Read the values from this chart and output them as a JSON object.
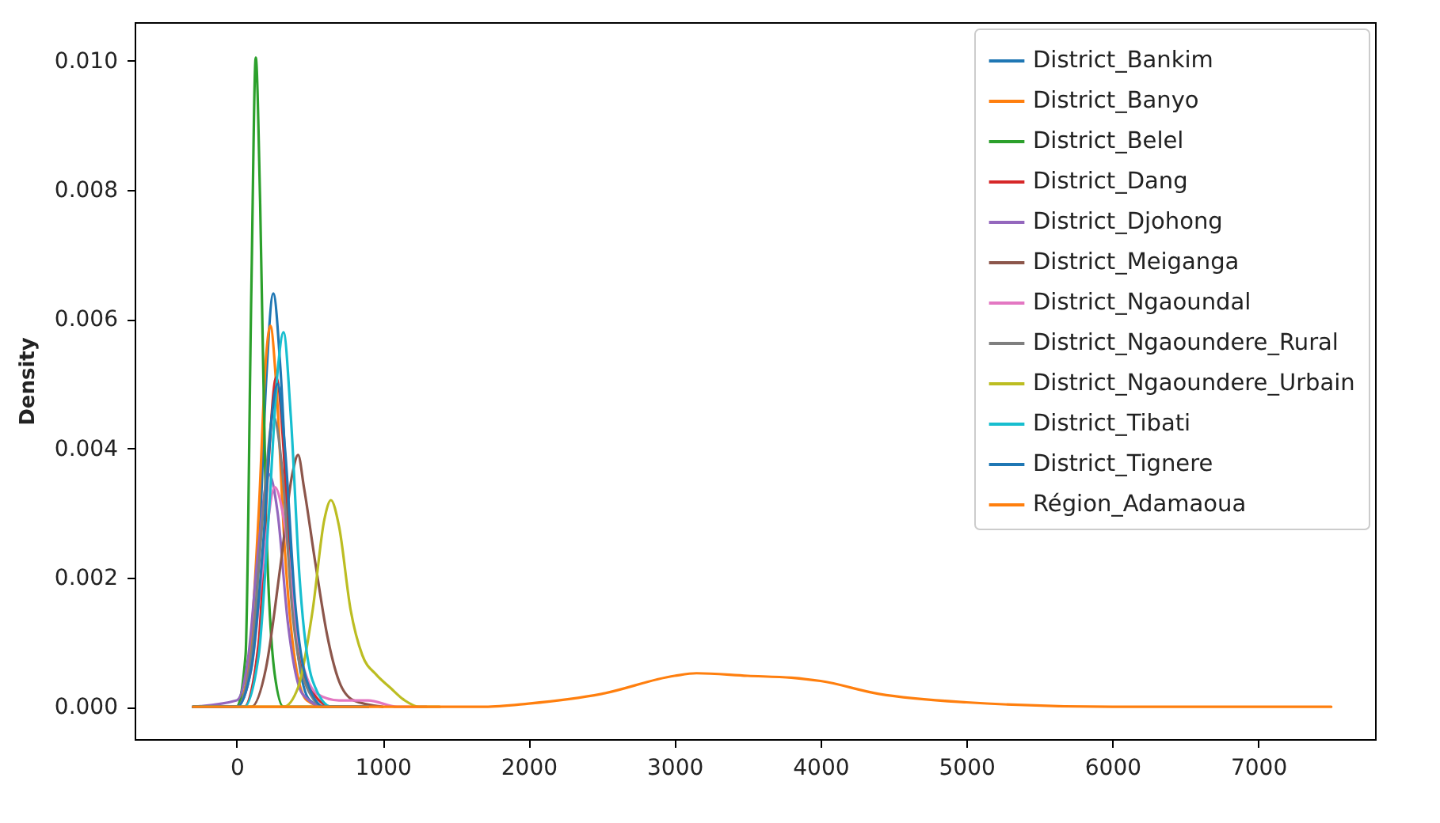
{
  "chart_data": {
    "type": "line",
    "ylabel": "Density",
    "legend": "top right",
    "grid": false,
    "marker": "none",
    "line_style": "solid",
    "xlim": [
      -700,
      7800
    ],
    "ylim": [
      -0.0005,
      0.0106
    ],
    "xticks": [
      0,
      1000,
      2000,
      3000,
      4000,
      5000,
      6000,
      7000
    ],
    "yticks": [
      {
        "value": 0,
        "label": "0.000"
      },
      {
        "value": 0.002,
        "label": "0.002"
      },
      {
        "value": 0.004,
        "label": "0.004"
      },
      {
        "value": 0.006,
        "label": "0.006"
      },
      {
        "value": 0.008,
        "label": "0.008"
      },
      {
        "value": 0.01,
        "label": "0.010"
      }
    ],
    "series": [
      {
        "name": "District_Bankim",
        "color": "#1f77b4",
        "x": [
          -300,
          0,
          80,
          150,
          200,
          250,
          300,
          360,
          420,
          500,
          600,
          800
        ],
        "values": [
          0,
          0,
          0.0004,
          0.0023,
          0.005,
          0.0064,
          0.0052,
          0.0025,
          0.0008,
          0.0001,
          0,
          0
        ]
      },
      {
        "name": "District_Banyo",
        "color": "#ff7f0e",
        "x": [
          -300,
          0,
          80,
          150,
          200,
          230,
          270,
          330,
          400,
          480,
          600,
          900
        ],
        "values": [
          0,
          0,
          0.0006,
          0.003,
          0.0054,
          0.0059,
          0.005,
          0.0024,
          0.0007,
          0.0001,
          0,
          0
        ]
      },
      {
        "name": "District_Belel",
        "color": "#2ca02c",
        "x": [
          -300,
          0,
          60,
          100,
          130,
          160,
          200,
          260,
          320,
          450,
          700
        ],
        "values": [
          0,
          0,
          0.0008,
          0.0065,
          0.01005,
          0.0078,
          0.003,
          0.0005,
          0,
          0,
          0
        ]
      },
      {
        "name": "District_Dang",
        "color": "#d62728",
        "x": [
          -300,
          50,
          150,
          210,
          270,
          320,
          360,
          420,
          500,
          650,
          900
        ],
        "values": [
          0,
          0,
          0.001,
          0.0035,
          0.0051,
          0.004,
          0.0022,
          0.0009,
          0.0003,
          0,
          0
        ]
      },
      {
        "name": "District_Djohong",
        "color": "#9467bd",
        "x": [
          -300,
          0,
          80,
          150,
          220,
          280,
          350,
          450,
          600,
          900
        ],
        "values": [
          0,
          0.0001,
          0.0008,
          0.0025,
          0.0036,
          0.003,
          0.0013,
          0.0002,
          0,
          0
        ]
      },
      {
        "name": "District_Meiganga",
        "color": "#8c564b",
        "x": [
          -300,
          100,
          200,
          300,
          380,
          420,
          460,
          540,
          620,
          700,
          800,
          1000
        ],
        "values": [
          0,
          0,
          0.0006,
          0.0022,
          0.0036,
          0.0039,
          0.0034,
          0.0022,
          0.0011,
          0.0004,
          0.0001,
          0
        ]
      },
      {
        "name": "District_Ngaoundal",
        "color": "#e377c2",
        "x": [
          -300,
          0,
          100,
          180,
          260,
          330,
          420,
          550,
          700,
          900,
          1100,
          1300
        ],
        "values": [
          0,
          0,
          0.0006,
          0.0022,
          0.0034,
          0.0028,
          0.001,
          0.0002,
          0.0001,
          0.0001,
          0,
          0
        ]
      },
      {
        "name": "District_Ngaoundere_Rural",
        "color": "#7f7f7f",
        "x": [
          -300,
          0,
          100,
          180,
          250,
          310,
          380,
          480,
          600,
          900
        ],
        "values": [
          0,
          0,
          0.0008,
          0.003,
          0.0045,
          0.0037,
          0.0015,
          0.0003,
          0,
          0
        ]
      },
      {
        "name": "District_Ngaoundere_Urbain",
        "color": "#bcbd22",
        "x": [
          -300,
          200,
          320,
          420,
          520,
          600,
          645,
          700,
          780,
          860,
          955,
          1050,
          1150,
          1250,
          1390
        ],
        "values": [
          0,
          0,
          0,
          0.0003,
          0.0015,
          0.0029,
          0.0032,
          0.0028,
          0.0015,
          0.0008,
          0.0005,
          0.0003,
          0.0001,
          0,
          0
        ]
      },
      {
        "name": "District_Tibati",
        "color": "#17becf",
        "x": [
          -300,
          50,
          150,
          220,
          280,
          320,
          370,
          430,
          520,
          650,
          900
        ],
        "values": [
          0,
          0,
          0.0008,
          0.003,
          0.0052,
          0.0058,
          0.0045,
          0.002,
          0.0004,
          0,
          0
        ]
      },
      {
        "name": "District_Tignere",
        "color": "#1f77b4",
        "x": [
          -300,
          0,
          100,
          180,
          240,
          280,
          330,
          400,
          480,
          600,
          900
        ],
        "values": [
          0,
          0,
          0.0006,
          0.0025,
          0.0045,
          0.005,
          0.004,
          0.0016,
          0.0004,
          0,
          0
        ]
      },
      {
        "name": "Région_Adamaoua",
        "color": "#ff7f0e",
        "x": [
          -300,
          500,
          1000,
          1700,
          2000,
          2500,
          3000,
          3150,
          3500,
          3800,
          4000,
          4400,
          5000,
          6000,
          7500
        ],
        "values": [
          0,
          0,
          0,
          0,
          5e-05,
          0.0002,
          0.00048,
          0.00052,
          0.00048,
          0.00045,
          0.0004,
          0.0002,
          7e-05,
          0,
          0
        ]
      }
    ]
  }
}
